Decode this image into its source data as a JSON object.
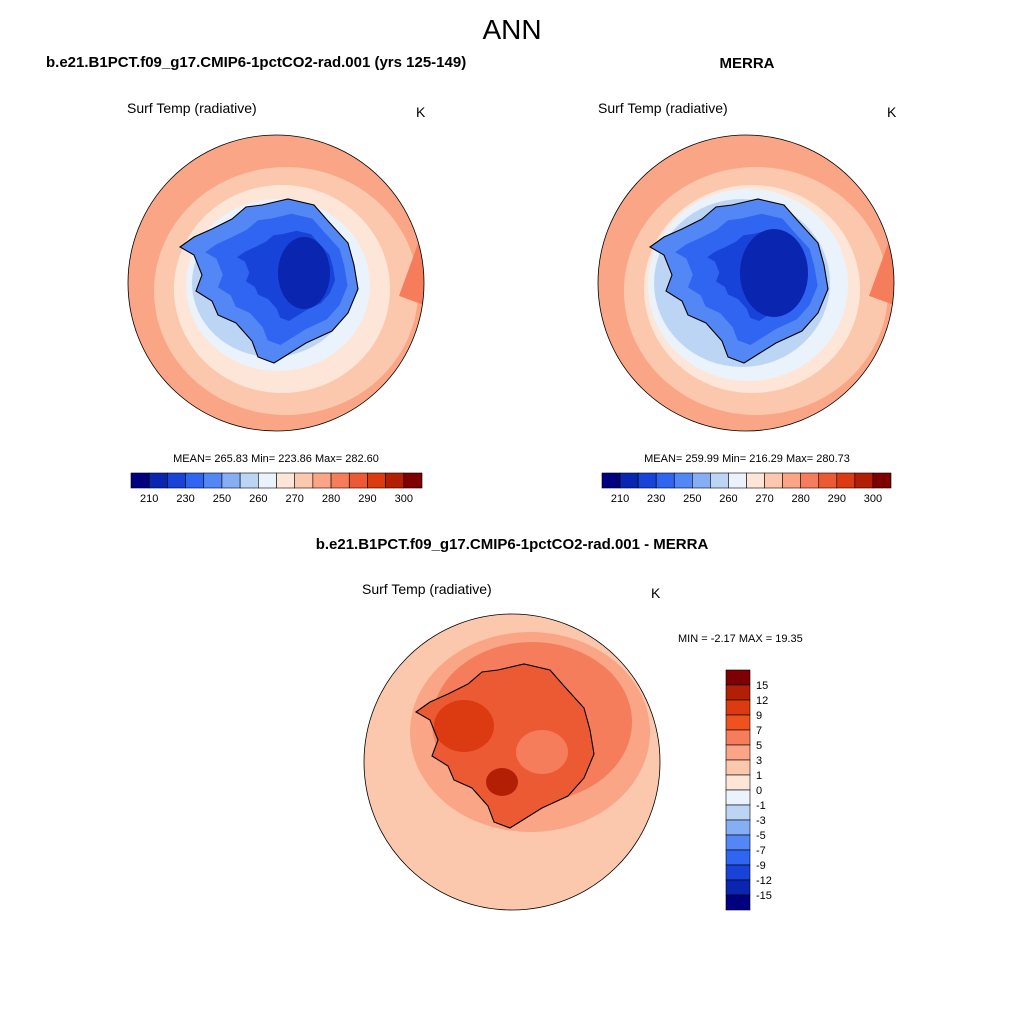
{
  "main_title": "ANN",
  "panels": [
    {
      "title": "b.e21.B1PCT.f09_g17.CMIP6-1pctCO2-rad.001 (yrs 125-149)",
      "variable": "Surf Temp (radiative)",
      "units": "K",
      "stats": "MEAN= 265.83  Min= 223.86  Max= 282.60"
    },
    {
      "title": "MERRA",
      "variable": "Surf Temp (radiative)",
      "units": "K",
      "stats": "MEAN= 259.99  Min= 216.29  Max= 280.73"
    },
    {
      "title": "b.e21.B1PCT.f09_g17.CMIP6-1pctCO2-rad.001 - MERRA",
      "variable": "Surf Temp (radiative)",
      "units": "K",
      "stats": "MIN =  -2.17 MAX =  19.35"
    }
  ],
  "colorbar_abs": {
    "colors": [
      "#000080",
      "#0a25b0",
      "#1843d8",
      "#2f65f0",
      "#5287f5",
      "#86aef5",
      "#bdd5f5",
      "#eaf2fc",
      "#fde6d8",
      "#fcc8ad",
      "#f9a586",
      "#f57d5c",
      "#ec5a34",
      "#dc3b12",
      "#b31f05",
      "#7e0000"
    ],
    "labels": [
      "210",
      "230",
      "250",
      "260",
      "270",
      "280",
      "290",
      "300"
    ],
    "label_boundaries": [
      1,
      3,
      5,
      7,
      9,
      11,
      13,
      15
    ]
  },
  "colorbar_diff": {
    "colors": [
      "#7e0000",
      "#b31f05",
      "#dc3b12",
      "#f0521f",
      "#f57d5c",
      "#f9a586",
      "#fcc8ad",
      "#fde6d8",
      "#eaf2fc",
      "#bdd5f5",
      "#86aef5",
      "#5287f5",
      "#2f65f0",
      "#1843d8",
      "#0a25b0",
      "#000080"
    ],
    "labels": [
      "15",
      "12",
      "9",
      "7",
      "5",
      "3",
      "1",
      "0",
      "-1",
      "-3",
      "-5",
      "-7",
      "-9",
      "-12",
      "-15"
    ]
  },
  "map_colors": {
    "ocean_warm": "#f9a586",
    "ocean_mid": "#fcc8ad",
    "ocean_cool": "#fde6d8",
    "ice_edge": "#eaf2fc",
    "ice": "#bdd5f5",
    "coast": "#5287f5",
    "interior": "#2f65f0",
    "plateau": "#1843d8",
    "dome": "#0a25b0",
    "edge_hot": "#f57d5c",
    "diff_bg": "#fcc8ad",
    "diff_mid": "#f9a586",
    "diff_hot": "#f57d5c",
    "diff_hotter": "#ec5a34",
    "diff_peak": "#dc3b12",
    "diff_max": "#b31f05"
  }
}
